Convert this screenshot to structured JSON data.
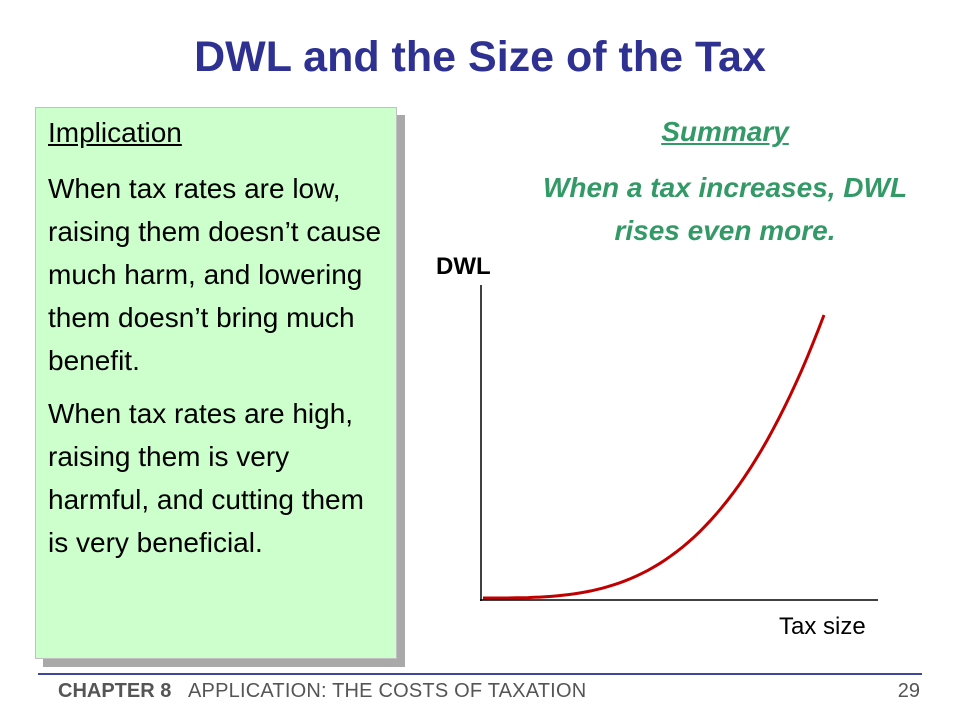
{
  "slide": {
    "title": "DWL and the Size of the Tax"
  },
  "implication_box": {
    "heading": "Implication",
    "paragraphs": [
      "When tax rates are low, raising them doesn’t cause much harm, and lowering them doesn’t bring much benefit.",
      "When tax rates are high, raising them is very harmful, and cutting them is very beneficial."
    ]
  },
  "summary": {
    "heading": "Summary",
    "text": "When a tax increases, DWL rises even more."
  },
  "chart_data": {
    "type": "line",
    "ylabel": "DWL",
    "xlabel": "Tax size",
    "curve_shape": "convex increasing",
    "curve_color": "#c00000",
    "axis_color": "#000000",
    "grid": false,
    "ticks": false
  },
  "footer": {
    "chapter": "CHAPTER 8",
    "chapter_title": "APPLICATION:  THE COSTS OF TAXATION",
    "page_number": "29"
  }
}
